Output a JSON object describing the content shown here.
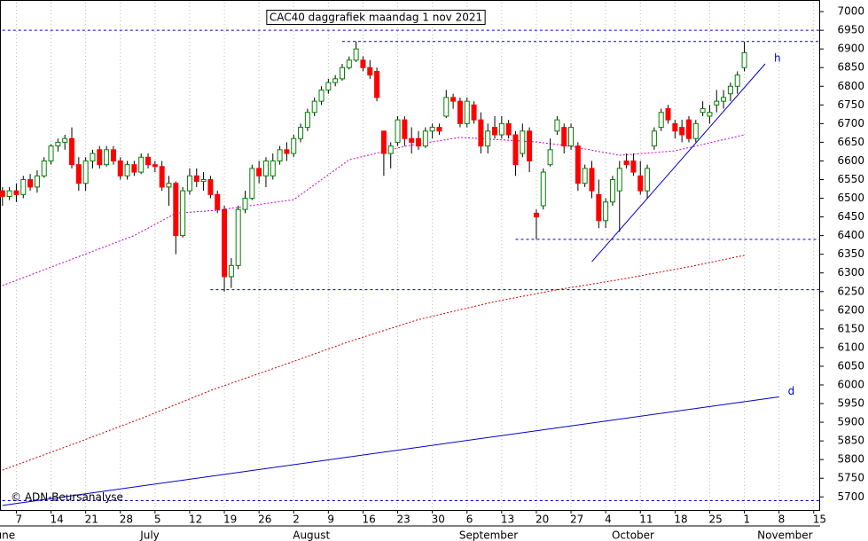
{
  "chart_data": {
    "type": "candlestick",
    "title": "CAC40 daggrafiek maandag 1 nov 2021",
    "copyright": "© ADN-Beursanalyse",
    "up_color": "#008000",
    "down_color": "#ff0000",
    "ylim": [
      5665,
      7024
    ],
    "yticks": [
      5700,
      5750,
      5800,
      5850,
      5900,
      5950,
      6000,
      6050,
      6100,
      6150,
      6200,
      6250,
      6300,
      6350,
      6400,
      6450,
      6500,
      6550,
      6600,
      6650,
      6700,
      6750,
      6800,
      6850,
      6900,
      6950,
      7000
    ],
    "categories": [
      null,
      null,
      "7",
      null,
      null,
      null,
      null,
      "14",
      null,
      null,
      null,
      null,
      "21",
      null,
      null,
      null,
      null,
      "28",
      null,
      null,
      null,
      null,
      "5",
      null,
      null,
      null,
      null,
      "12",
      null,
      null,
      null,
      null,
      "19",
      null,
      null,
      null,
      null,
      "26",
      null,
      null,
      null,
      null,
      "2",
      null,
      null,
      null,
      null,
      "9",
      null,
      null,
      null,
      null,
      "16",
      null,
      null,
      null,
      null,
      "23",
      null,
      null,
      null,
      null,
      "30",
      null,
      null,
      null,
      null,
      "6",
      null,
      null,
      null,
      null,
      "13",
      null,
      null,
      null,
      null,
      "20",
      null,
      null,
      null,
      null,
      "27",
      null,
      null,
      null,
      null,
      "4",
      null,
      null,
      null,
      null,
      "11",
      null,
      null,
      null,
      null,
      "18",
      null,
      null,
      null,
      null,
      "25",
      null,
      null,
      null,
      null,
      "1",
      null,
      null,
      null,
      null,
      "8",
      null,
      null,
      null,
      null,
      "15"
    ],
    "months": [
      "June",
      null,
      null,
      null,
      null,
      null,
      null,
      null,
      null,
      null,
      null,
      null,
      null,
      null,
      null,
      null,
      null,
      null,
      null,
      null,
      "July",
      null,
      null,
      null,
      null,
      null,
      null,
      null,
      null,
      null,
      null,
      null,
      null,
      null,
      null,
      null,
      null,
      null,
      null,
      null,
      null,
      null,
      "August",
      null,
      null,
      null,
      null,
      null,
      null,
      null,
      null,
      null,
      null,
      null,
      null,
      null,
      null,
      null,
      null,
      null,
      null,
      null,
      null,
      null,
      null,
      null,
      "September",
      null,
      null,
      null,
      null,
      null,
      null,
      null,
      null,
      null,
      null,
      null,
      null,
      null,
      null,
      null,
      null,
      null,
      null,
      null,
      null,
      null,
      "October",
      null,
      null,
      null,
      null,
      null,
      null,
      null,
      null,
      null,
      null,
      null,
      null,
      null,
      null,
      null,
      null,
      null,
      null,
      null,
      null,
      "November",
      null,
      null,
      null,
      null,
      null,
      null,
      null,
      null,
      null,
      null
    ],
    "open": [
      6520,
      6505,
      6520,
      6510,
      6550,
      6530,
      6560,
      6600,
      6640,
      6650,
      6660,
      6590,
      6540,
      6600,
      6630,
      6590,
      6630,
      6600,
      6560,
      6590,
      6570,
      6610,
      6590,
      6585,
      6530,
      6540,
      6400,
      6520,
      6560,
      6545,
      6550,
      6510,
      6470,
      6290,
      6320,
      6470,
      6500,
      6580,
      6560,
      6560,
      6600,
      6630,
      6620,
      6660,
      6690,
      6730,
      6760,
      6790,
      6810,
      6820,
      6850,
      6870,
      6870,
      6850,
      6840,
      6680,
      6620,
      6650,
      6710,
      6660,
      6660,
      6640,
      6680,
      6690,
      6720,
      6770,
      6760,
      6700,
      6750,
      6710,
      6640,
      6690,
      6670,
      6700,
      6670,
      6620,
      6680,
      6460,
      6480,
      6590,
      6680,
      6690,
      6640,
      6640,
      6540,
      6580,
      6510,
      6440,
      6490,
      6520,
      6600,
      6600,
      6560,
      6520,
      6640,
      6690,
      6740,
      6700,
      6690,
      6710,
      6660,
      6730,
      6720,
      6750,
      6760,
      6780,
      6800,
      6850,
      null,
      null,
      null,
      null,
      null,
      null,
      null,
      null,
      null,
      null
    ],
    "high": [
      6530,
      6530,
      6540,
      6560,
      6565,
      6575,
      6610,
      6645,
      6660,
      6670,
      6690,
      6610,
      6610,
      6630,
      6640,
      6640,
      6640,
      6610,
      6600,
      6600,
      6620,
      6620,
      6600,
      6600,
      6560,
      6545,
      6530,
      6580,
      6580,
      6570,
      6560,
      6520,
      6480,
      6340,
      6480,
      6520,
      6590,
      6600,
      6610,
      6620,
      6640,
      6650,
      6670,
      6700,
      6740,
      6770,
      6800,
      6820,
      6830,
      6860,
      6880,
      6920,
      6880,
      6870,
      6850,
      6680,
      6650,
      6720,
      6720,
      6690,
      6680,
      6690,
      6700,
      6700,
      6790,
      6780,
      6770,
      6770,
      6760,
      6730,
      6700,
      6720,
      6720,
      6710,
      6680,
      6700,
      6690,
      6470,
      6580,
      6660,
      6720,
      6700,
      6700,
      6650,
      6590,
      6600,
      6550,
      6500,
      6560,
      6600,
      6620,
      6620,
      6600,
      6590,
      6690,
      6740,
      6750,
      6710,
      6710,
      6720,
      6710,
      6760,
      6750,
      6790,
      6790,
      6810,
      6840,
      6920,
      null,
      null,
      null,
      null,
      null,
      null,
      null,
      null,
      null,
      null
    ],
    "low": [
      6480,
      6495,
      6490,
      6500,
      6520,
      6515,
      6555,
      6590,
      6625,
      6630,
      6580,
      6520,
      6520,
      6580,
      6580,
      6585,
      6590,
      6550,
      6550,
      6560,
      6565,
      6580,
      6570,
      6520,
      6480,
      6350,
      6395,
      6510,
      6530,
      6520,
      6500,
      6460,
      6250,
      6260,
      6310,
      6460,
      6495,
      6540,
      6530,
      6550,
      6590,
      6600,
      6610,
      6650,
      6680,
      6720,
      6750,
      6780,
      6800,
      6815,
      6845,
      6865,
      6840,
      6820,
      6760,
      6560,
      6580,
      6640,
      6640,
      6620,
      6630,
      6635,
      6660,
      6670,
      6715,
      6740,
      6690,
      6690,
      6700,
      6620,
      6620,
      6660,
      6660,
      6660,
      6560,
      6610,
      6570,
      6390,
      6470,
      6585,
      6670,
      6620,
      6630,
      6520,
      6530,
      6500,
      6420,
      6420,
      6480,
      6410,
      6580,
      6560,
      6510,
      6500,
      6630,
      6680,
      6700,
      6660,
      6650,
      6650,
      6650,
      6720,
      6700,
      6730,
      6740,
      6760,
      6780,
      6840,
      null,
      null,
      null,
      null,
      null,
      null,
      null,
      null,
      null,
      null
    ],
    "close": [
      6505,
      6520,
      6510,
      6550,
      6530,
      6560,
      6600,
      6640,
      6650,
      6660,
      6590,
      6540,
      6600,
      6620,
      6590,
      6630,
      6600,
      6560,
      6590,
      6570,
      6610,
      6590,
      6585,
      6530,
      6540,
      6400,
      6520,
      6560,
      6545,
      6550,
      6510,
      6470,
      6290,
      6320,
      6470,
      6500,
      6580,
      6560,
      6600,
      6600,
      6630,
      6620,
      6660,
      6690,
      6730,
      6760,
      6790,
      6810,
      6820,
      6850,
      6870,
      6900,
      6850,
      6830,
      6770,
      6620,
      6640,
      6710,
      6660,
      6650,
      6640,
      6680,
      6690,
      6680,
      6770,
      6760,
      6700,
      6760,
      6710,
      6640,
      6680,
      6670,
      6700,
      6670,
      6590,
      6680,
      6600,
      6450,
      6570,
      6630,
      6710,
      6640,
      6690,
      6540,
      6580,
      6520,
      6440,
      6490,
      6550,
      6580,
      6590,
      6570,
      6520,
      6580,
      6680,
      6730,
      6710,
      6680,
      6670,
      6660,
      6700,
      6740,
      6730,
      6760,
      6770,
      6800,
      6830,
      6890,
      null,
      null,
      null,
      null,
      null,
      null,
      null,
      null,
      null,
      null
    ],
    "averages": [
      {
        "color": "#cc00cc",
        "x": [
          0,
          19,
          25,
          31,
          42,
          50,
          58,
          66,
          77,
          82,
          89,
          97,
          107
        ],
        "values": [
          6266,
          6400,
          6460,
          6468,
          6496,
          6603,
          6639,
          6663,
          6651,
          6639,
          6615,
          6627,
          6670
        ]
      },
      {
        "color": "#cc0000",
        "x": [
          0,
          10,
          20,
          30,
          40,
          50,
          60,
          71,
          80,
          89,
          100,
          107
        ],
        "values": [
          5772,
          5840,
          5910,
          5985,
          6050,
          6116,
          6175,
          6223,
          6255,
          6282,
          6320,
          6347
        ]
      }
    ],
    "trendlines": [
      {
        "label": "d",
        "color": "#0000cc",
        "x": [
          0,
          112
        ],
        "values": [
          5677,
          5968
        ]
      },
      {
        "label": "h",
        "color": "#0000cc",
        "x": [
          85,
          110
        ],
        "values": [
          6330,
          6860
        ]
      }
    ],
    "levels": [
      {
        "value": 6950,
        "from": 0
      },
      {
        "value": 6920,
        "from": 49
      },
      {
        "value": 6390,
        "from": 74
      },
      {
        "value": 6255,
        "from": 30
      },
      {
        "value": 5690,
        "from": 0
      }
    ]
  }
}
